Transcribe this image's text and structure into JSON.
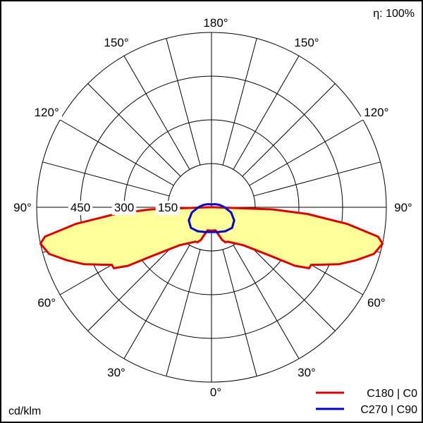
{
  "efficiency_label": "η: 100%",
  "unit_label": "cd/klm",
  "colors": {
    "background": "#ffffff",
    "grid": "#000000",
    "fill": "#ffff99",
    "c180_c0": "#dd0000",
    "c270_c90": "#0000cc"
  },
  "chart_data": {
    "type": "polar",
    "unit": "cd/klm",
    "r_max": 600,
    "radial_ticks": [
      150,
      300,
      450,
      600
    ],
    "radial_tick_labels": [
      "150",
      "300",
      "450"
    ],
    "angle_step": 15,
    "angle_labels": [
      {
        "angle": 0,
        "text": "0°",
        "side": "center"
      },
      {
        "angle": 30,
        "text": "30°",
        "side": "left"
      },
      {
        "angle": 30,
        "text": "30°",
        "side": "right"
      },
      {
        "angle": 60,
        "text": "60°",
        "side": "left"
      },
      {
        "angle": 60,
        "text": "60°",
        "side": "right"
      },
      {
        "angle": 90,
        "text": "90°",
        "side": "left"
      },
      {
        "angle": 90,
        "text": "90°",
        "side": "right"
      },
      {
        "angle": 120,
        "text": "120°",
        "side": "left"
      },
      {
        "angle": 120,
        "text": "120°",
        "side": "right"
      },
      {
        "angle": 150,
        "text": "150°",
        "side": "left"
      },
      {
        "angle": 150,
        "text": "150°",
        "side": "right"
      },
      {
        "angle": 180,
        "text": "180°",
        "side": "center"
      }
    ],
    "series": [
      {
        "name": "C180 | C0",
        "color": "#dd0000",
        "fill": "#ffff99",
        "points": [
          [
            0,
            80
          ],
          [
            10,
            80
          ],
          [
            15,
            100
          ],
          [
            18,
            118
          ],
          [
            22,
            130
          ],
          [
            25,
            130
          ],
          [
            30,
            140
          ],
          [
            40,
            170
          ],
          [
            50,
            255
          ],
          [
            55,
            350
          ],
          [
            58,
            395
          ],
          [
            60,
            395
          ],
          [
            62,
            420
          ],
          [
            66,
            480
          ],
          [
            70,
            530
          ],
          [
            74,
            580
          ],
          [
            78,
            600
          ],
          [
            80,
            580
          ],
          [
            83,
            470
          ],
          [
            86,
            330
          ],
          [
            88,
            210
          ],
          [
            90,
            10
          ]
        ]
      },
      {
        "name": "C270 | C90",
        "color": "#0000cc",
        "points": [
          [
            0,
            85
          ],
          [
            15,
            88
          ],
          [
            30,
            95
          ],
          [
            45,
            100
          ],
          [
            60,
            90
          ],
          [
            75,
            70
          ],
          [
            90,
            45
          ],
          [
            105,
            30
          ],
          [
            120,
            20
          ],
          [
            135,
            15
          ],
          [
            150,
            12
          ],
          [
            165,
            10
          ],
          [
            180,
            10
          ]
        ]
      }
    ]
  }
}
